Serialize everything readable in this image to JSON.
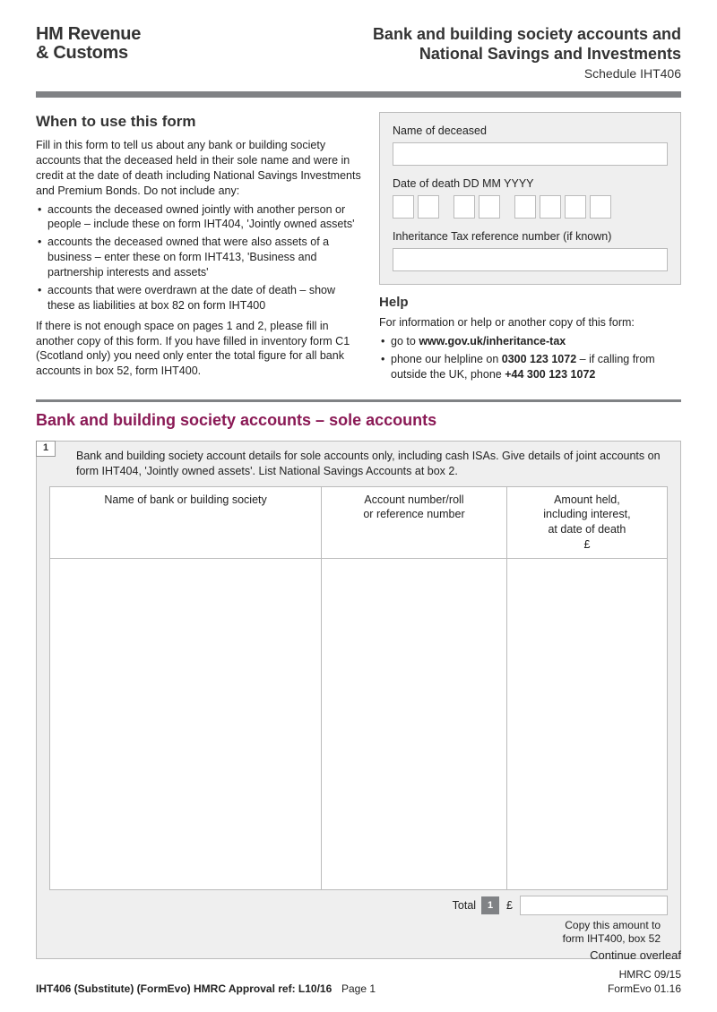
{
  "header": {
    "logo_line1": "HM Revenue",
    "logo_line2": "& Customs",
    "title_line1": "Bank and building society accounts and",
    "title_line2": "National Savings and Investments",
    "schedule": "Schedule IHT406"
  },
  "when": {
    "heading": "When to use this form",
    "intro": "Fill in this form to tell us about any bank or building society accounts that the deceased held in their sole name and were in credit at the date of death including National Savings Investments and Premium Bonds. Do not include any:",
    "bullets": [
      "accounts the deceased owned jointly with another person or people – include these on form IHT404, 'Jointly owned assets'",
      "accounts the deceased owned that were also assets of a business – enter these on form IHT413, 'Business and partnership interests and assets'",
      "accounts that were overdrawn at the date of death – show these as liabilities at box 82 on form IHT400"
    ],
    "outro": "If there is not enough space on pages 1 and 2, please fill in another copy of this form. If you have filled in inventory form C1 (Scotland only) you need only enter the total figure for all bank accounts in box 52, form IHT400."
  },
  "panel": {
    "name_label": "Name of deceased",
    "name_value": "",
    "date_label": "Date of death  DD MM YYYY",
    "date_values": [
      "",
      "",
      "",
      "",
      "",
      "",
      "",
      ""
    ],
    "ref_label": "Inheritance Tax reference number (if known)",
    "ref_value": ""
  },
  "help": {
    "heading": "Help",
    "intro": "For information or help or another copy of this form:",
    "goto_prefix": "go to ",
    "goto_url": "www.gov.uk/inheritance-tax",
    "phone_prefix": "phone our helpline on ",
    "phone_bold": "0300 123 1072",
    "phone_mid": " – if calling from outside the UK, phone ",
    "phone_intl": "+44 300 123 1072"
  },
  "section1": {
    "title": "Bank and building society accounts – sole accounts",
    "q_num": "1",
    "q_text": "Bank and building society account details for sole accounts only, including cash ISAs. Give details of joint accounts on form IHT404, 'Jointly owned assets'. List National Savings Accounts at box 2.",
    "col1": "Name of bank or building society",
    "col2_l1": "Account number/roll",
    "col2_l2": "or reference number",
    "col3_l1": "Amount held,",
    "col3_l2": "including interest,",
    "col3_l3": "at date of death",
    "col3_l4": "£",
    "total_label": "Total",
    "total_num": "1",
    "total_pound": "£",
    "total_value": "",
    "copy_l1": "Copy this amount to",
    "copy_l2": "form IHT400, box 52"
  },
  "footer": {
    "continue": "Continue overleaf",
    "page": "Page 1",
    "left": "IHT406 (Substitute) (FormEvo) HMRC Approval ref: L10/16",
    "right_l1": "HMRC 09/15",
    "right_l2": "FormEvo 01.16"
  },
  "colors": {
    "bar": "#808285",
    "accent": "#8a1955",
    "panel_bg": "#efefef",
    "border": "#bbbbbb"
  }
}
